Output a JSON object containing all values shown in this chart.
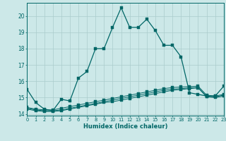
{
  "title": "",
  "xlabel": "Humidex (Indice chaleur)",
  "background_color": "#cce8e8",
  "grid_color": "#aacccc",
  "line_color": "#006666",
  "x_values": [
    0,
    1,
    2,
    3,
    4,
    5,
    6,
    7,
    8,
    9,
    10,
    11,
    12,
    13,
    14,
    15,
    16,
    17,
    18,
    19,
    20,
    21,
    22,
    23
  ],
  "series1": [
    15.5,
    14.7,
    14.3,
    14.2,
    14.9,
    14.8,
    16.2,
    16.6,
    18.0,
    18.0,
    19.3,
    20.5,
    19.3,
    19.3,
    19.8,
    19.1,
    18.2,
    18.2,
    17.5,
    15.3,
    15.2,
    15.1,
    15.1,
    15.7
  ],
  "series2": [
    14.3,
    14.2,
    14.15,
    14.15,
    14.2,
    14.3,
    14.4,
    14.5,
    14.6,
    14.7,
    14.75,
    14.85,
    14.95,
    15.05,
    15.15,
    15.25,
    15.35,
    15.45,
    15.5,
    15.55,
    15.6,
    15.05,
    15.0,
    15.1
  ],
  "series3": [
    14.35,
    14.25,
    14.2,
    14.2,
    14.25,
    14.35,
    14.45,
    14.55,
    14.65,
    14.75,
    14.85,
    14.95,
    15.05,
    15.15,
    15.25,
    15.35,
    15.45,
    15.52,
    15.55,
    15.6,
    15.62,
    15.08,
    15.05,
    15.15
  ],
  "series4": [
    14.4,
    14.3,
    14.25,
    14.25,
    14.35,
    14.45,
    14.55,
    14.65,
    14.75,
    14.85,
    14.95,
    15.05,
    15.15,
    15.25,
    15.35,
    15.45,
    15.55,
    15.62,
    15.65,
    15.68,
    15.7,
    15.15,
    15.1,
    15.2
  ],
  "xlim": [
    0,
    23
  ],
  "ylim": [
    13.9,
    20.8
  ],
  "yticks": [
    14,
    15,
    16,
    17,
    18,
    19,
    20
  ],
  "xticks": [
    0,
    1,
    2,
    3,
    4,
    5,
    6,
    7,
    8,
    9,
    10,
    11,
    12,
    13,
    14,
    15,
    16,
    17,
    18,
    19,
    20,
    21,
    22,
    23
  ]
}
